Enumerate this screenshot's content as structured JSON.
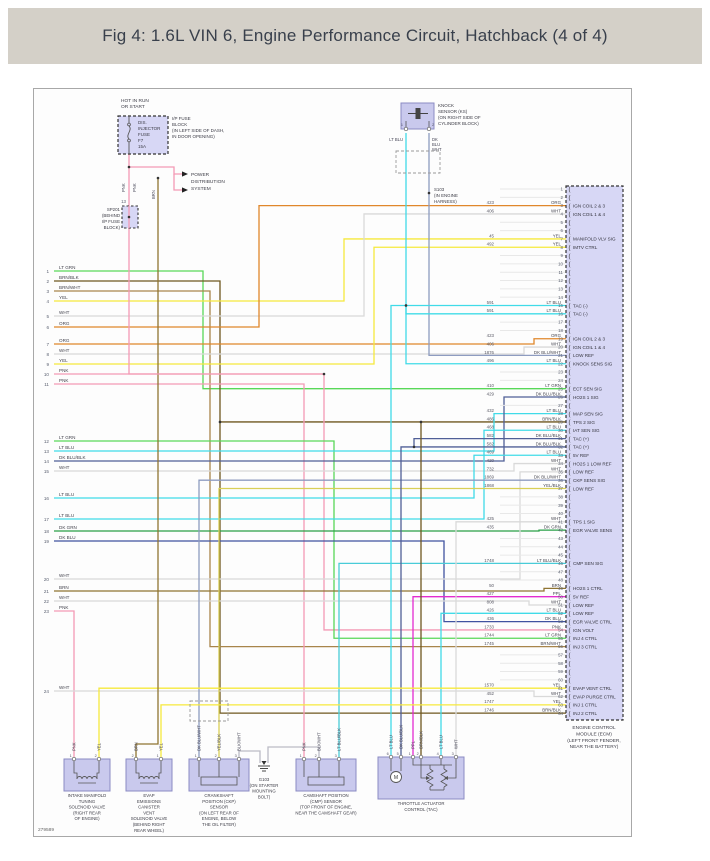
{
  "title": "Fig 4: 1.6L VIN 6, Engine Performance Circuit, Hatchback (4 of 4)",
  "drawing_number": "279589",
  "wire_colors": {
    "LT GRN": "#58d858",
    "BRN/BLK": "#6e571f",
    "BRN/WHT": "#a8854b",
    "YEL": "#f6e93d",
    "WHT": "#d9d9d9",
    "ORG": "#e0872b",
    "PNK": "#f49ab5",
    "LT BLU": "#40dbe8",
    "DK BLU/BLK": "#505f97",
    "DK GRN": "#28a046",
    "DK BLU": "#4053a0",
    "BRN": "#8f7431",
    "PPL": "#e32bd0",
    "DK BLU/WHT": "#8e9cc0",
    "YEL/BLK": "#d9cf56",
    "BLK/WHT": "#bcbcc6",
    "LT BLU/BLK": "#49ccd8",
    "EMPTY": "#e8e8e8"
  },
  "fuse_block": {
    "header": [
      "HOT IN RUN",
      "OR START"
    ],
    "fuse_lines": [
      "DIS.",
      "INJECTOR",
      "FUSE",
      "F7",
      "15A"
    ],
    "location": [
      "I/P FUSE",
      "BLOCK",
      "(IN LEFT SIDE OF DASH,",
      "IN DOOR OPENING)"
    ],
    "out_labels": [
      "PNK",
      "PNK"
    ]
  },
  "power_distribution": [
    "POWER",
    "DISTRIBUTION",
    "SYSTEM"
  ],
  "sp201": {
    "pin": "13",
    "label": [
      "SP201",
      "(BEHIND",
      "I/P FUSE",
      "BLOCK)"
    ],
    "trunk_label": "BRN"
  },
  "knock_sensor": {
    "label": [
      "KNOCK",
      "SENSOR (KS)",
      "(ON RIGHT SIDE OF",
      "CYLINDER BLOCK)"
    ],
    "pins": [
      {
        "n": "1",
        "color_lines": [
          "LT BLU"
        ]
      },
      {
        "n": "2",
        "color_lines": [
          "DK",
          "BLU",
          "WHT"
        ]
      }
    ]
  },
  "s103": {
    "label": [
      "S103",
      "(IN ENGINE",
      "HARNESS)"
    ]
  },
  "left_entries": [
    {
      "n": "1",
      "color": "LT GRN"
    },
    {
      "n": "2",
      "color": "BRN/BLK"
    },
    {
      "n": "3",
      "color": "BRN/WHT"
    },
    {
      "n": "4",
      "color": "YEL"
    },
    {
      "n": "5",
      "color": "WHT"
    },
    {
      "n": "6",
      "color": "ORG"
    },
    {
      "n": "7",
      "color": "ORG"
    },
    {
      "n": "8",
      "color": "WHT"
    },
    {
      "n": "9",
      "color": "YEL"
    },
    {
      "n": "10",
      "color": "PNK"
    },
    {
      "n": "11",
      "color": "PNK"
    },
    {
      "n": "12",
      "color": "LT GRN"
    },
    {
      "n": "13",
      "color": "LT BLU"
    },
    {
      "n": "14",
      "color": "DK BLU/BLK"
    },
    {
      "n": "15",
      "color": "WHT"
    },
    {
      "n": "16",
      "color": "LT BLU"
    },
    {
      "n": "17",
      "color": "LT BLU"
    },
    {
      "n": "18",
      "color": "DK GRN"
    },
    {
      "n": "19",
      "color": "DK BLU"
    },
    {
      "n": "20",
      "color": "WHT"
    },
    {
      "n": "21",
      "color": "BRN"
    },
    {
      "n": "22",
      "color": "WHT"
    },
    {
      "n": "23",
      "color": "PNK"
    },
    {
      "n": "24",
      "color": "WHT"
    }
  ],
  "ecm": {
    "pin_count": 64,
    "caption": [
      "ENGINE CONTROL",
      "MODULE (ECM)",
      "(LEFT FRONT FENDER,",
      "NEAR THE BATTERY)"
    ],
    "pins": {
      "3": {
        "wire": "423",
        "color": "ORG",
        "signal": "IGN COIL 2 & 3"
      },
      "4": {
        "wire": "406",
        "color": "WHT",
        "signal": "IGN COIL 1 & 4"
      },
      "7": {
        "wire": "45",
        "color": "YEL",
        "signal": "MANIFOLD VLV SIG"
      },
      "8": {
        "wire": "492",
        "color": "YEL",
        "signal": "IMTV CTRL"
      },
      "15": {
        "wire": "591",
        "color": "LT BLU",
        "signal": "TAC (-)"
      },
      "16": {
        "wire": "591",
        "color": "LT BLU",
        "signal": "TAC (-)"
      },
      "19": {
        "wire": "423",
        "color": "ORG",
        "signal": "IGN COIL 2 & 3"
      },
      "20": {
        "wire": "406",
        "color": "WHT",
        "signal": "IGN COIL 1 & 4"
      },
      "21": {
        "wire": "1876",
        "color": "DK BLU/WHT",
        "signal": "LOW REF"
      },
      "22": {
        "wire": "496",
        "color": "LT BLU",
        "signal": "KNOCK SENS SIG"
      },
      "25": {
        "wire": "410",
        "color": "LT GRN",
        "signal": "ECT SEN SIG"
      },
      "26": {
        "wire": "429",
        "color": "DK BLU/BLK",
        "signal": "HO2S 1 SIG"
      },
      "28": {
        "wire": "432",
        "color": "LT BLU",
        "signal": "MAP SEN SIG"
      },
      "29": {
        "wire": "486",
        "color": "BRN/BLK",
        "signal": "TPS 2 SIG"
      },
      "30": {
        "wire": "468",
        "color": "LT BLU",
        "signal": "IAT SEN SIG"
      },
      "31": {
        "wire": "582",
        "color": "DK BLU/BLK",
        "signal": "TAC (+)"
      },
      "32": {
        "wire": "582",
        "color": "DK BLU/BLK",
        "signal": "TAC (+)"
      },
      "33": {
        "wire": "469",
        "color": "LT BLU",
        "signal": "5V REF"
      },
      "34": {
        "wire": "420",
        "color": "WHT",
        "signal": "HO2S 1 LOW REF"
      },
      "35": {
        "wire": "732",
        "color": "WHT",
        "signal": "LOW REF"
      },
      "36": {
        "wire": "1869",
        "color": "DK BLU/WHT",
        "signal": "CKP SENS SIG"
      },
      "37": {
        "wire": "1868",
        "color": "YEL/BLK",
        "signal": "LOW REF"
      },
      "41": {
        "wire": "425",
        "color": "WHT",
        "signal": "TPS 1 SIG"
      },
      "42": {
        "wire": "435",
        "color": "DK GRN",
        "signal": "EGR VALVE SENS"
      },
      "46": {
        "wire": "1748",
        "color": "LT BLU/BLK",
        "signal": "CMP SEN SIG"
      },
      "49": {
        "wire": "50",
        "color": "BRN",
        "signal": "HO2S 1 CTRL"
      },
      "50": {
        "wire": "427",
        "color": "PPL",
        "signal": "5V REF"
      },
      "51": {
        "wire": "808",
        "color": "WHT",
        "signal": "LOW REF"
      },
      "52": {
        "wire": "426",
        "color": "LT BLU",
        "signal": "LOW REF"
      },
      "53": {
        "wire": "436",
        "color": "DK BLU",
        "signal": "EGR VALVE CTRL"
      },
      "54": {
        "wire": "1733",
        "color": "PNK",
        "signal": "IGN VOLT"
      },
      "55": {
        "wire": "1744",
        "color": "LT GRN",
        "signal": "INJ 4 CTRL"
      },
      "56": {
        "wire": "1745",
        "color": "BRN/WHT",
        "signal": "INJ 3 CTRL"
      },
      "61": {
        "wire": "1570",
        "color": "YEL",
        "signal": "EVAP VENT CTRL"
      },
      "62": {
        "wire": "452",
        "color": "WHT",
        "signal": "EVAP PURGE CTRL"
      },
      "63": {
        "wire": "1747",
        "color": "YEL",
        "signal": "INJ 1 CTRL"
      },
      "64": {
        "wire": "1746",
        "color": "BRN/BLK",
        "signal": "INJ 2 CTRL"
      }
    }
  },
  "components": [
    {
      "id": "imt",
      "type": "solenoid",
      "caption": [
        "INTAKE MANIFOLD",
        "TUNING",
        "SOLENOID VALVE",
        "(RIGHT REAR",
        "OF ENGINE)"
      ],
      "pins": [
        {
          "n": "1",
          "color": "PNK"
        },
        {
          "n": "2",
          "color": "YEL"
        }
      ]
    },
    {
      "id": "evap",
      "type": "solenoid",
      "caption": [
        "EVAP",
        "EMISSIONS",
        "CANISTER",
        "VENT",
        "SOLENOID VALVE",
        "(BEHIND RIGHT",
        "REAR WHEEL)"
      ],
      "pins": [
        {
          "n": "2",
          "color": "BRN"
        },
        {
          "n": "1",
          "color": "YEL"
        }
      ]
    },
    {
      "id": "ckp",
      "type": "sensor",
      "caption": [
        "CRANKSHAFT",
        "POSITION (CKP)",
        "SENSOR",
        "(ON LEFT REAR OF",
        "ENGINE, BELOW",
        "THE OIL FILTER)"
      ],
      "pins": [
        {
          "n": "1",
          "color": "DK BLU/WHT"
        },
        {
          "n": "2",
          "color": "YEL/BLK"
        },
        {
          "n": "3",
          "color": "BLK/WHT"
        }
      ]
    },
    {
      "id": "g103",
      "type": "ground",
      "caption": [
        "G103",
        "(ON STARTER",
        "MOUNTING",
        "BOLT)"
      ],
      "pins": [
        {
          "n": "",
          "color": "BLK/WHT"
        },
        {
          "n": "",
          "color": "BLK/WHT"
        }
      ]
    },
    {
      "id": "cmp",
      "type": "sensor",
      "caption": [
        "CAMSHAFT POSITION",
        "(CMP) SENSOR",
        "(TOP FRONT OF ENGINE,",
        "NEAR THE CAMSHAFT GEAR)"
      ],
      "pins": [
        {
          "n": "1",
          "color": "PNK"
        },
        {
          "n": "2",
          "color": "BLK/WHT"
        },
        {
          "n": "3",
          "color": "LT BLU/BLK"
        }
      ]
    },
    {
      "id": "tac",
      "type": "tac",
      "caption": [
        "THROTTLE ACTUATOR",
        "CONTROL (TAC)"
      ],
      "pins": [
        {
          "n": "6",
          "color": "LT BLU"
        },
        {
          "n": "5",
          "color": "DK BLU/BLK"
        },
        {
          "n": "1",
          "color": "PPL"
        },
        {
          "n": "2",
          "color": "BRN/BLK"
        },
        {
          "n": "4",
          "color": "LT BLU"
        },
        {
          "n": "3",
          "color": "WHT"
        }
      ]
    }
  ]
}
